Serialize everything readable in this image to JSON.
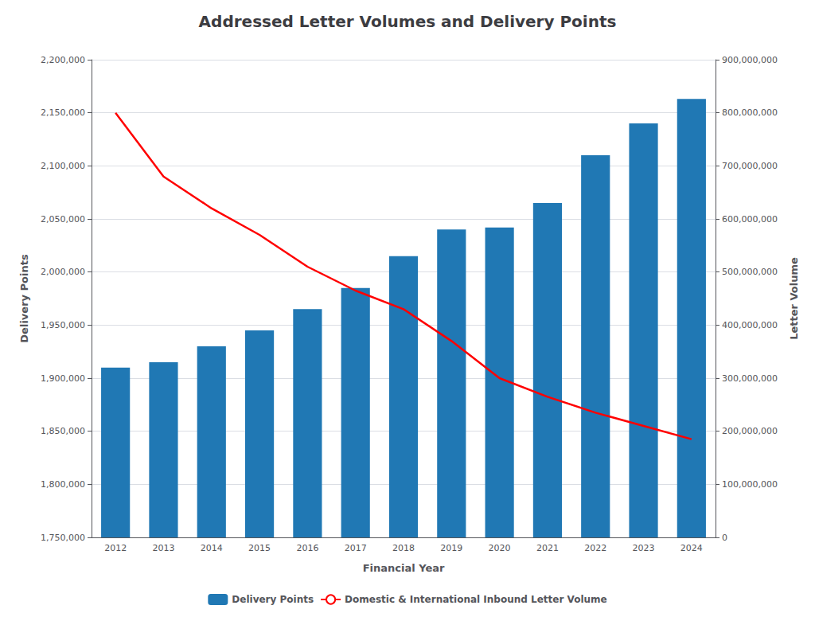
{
  "chart_data": {
    "type": "bar",
    "title": "Addressed Letter Volumes and Delivery Points",
    "xlabel": "Financial Year",
    "ylabel": "Delivery Points",
    "y2label": "Letter Volume",
    "categories": [
      "2012",
      "2013",
      "2014",
      "2015",
      "2016",
      "2017",
      "2018",
      "2019",
      "2020",
      "2021",
      "2022",
      "2023",
      "2024"
    ],
    "series": [
      {
        "name": "Delivery Points",
        "type": "bar",
        "color": "#2078B4",
        "values": [
          1910000,
          1915000,
          1930000,
          1945000,
          1965000,
          1985000,
          2015000,
          2040000,
          2042000,
          2065000,
          2110000,
          2140000,
          2163000
        ]
      },
      {
        "name": "Domestic & International Inbound Letter Volume",
        "type": "line",
        "color": "#FF0000",
        "axis": "y2",
        "values": [
          800000000,
          680000000,
          620000000,
          570000000,
          510000000,
          465000000,
          430000000,
          370000000,
          300000000,
          265000000,
          235000000,
          210000000,
          185000000
        ]
      }
    ],
    "ylim": [
      1750000,
      2200000
    ],
    "yticks": [
      {
        "value": 1750000,
        "label": "1,750,000"
      },
      {
        "value": 1800000,
        "label": "1,800,000"
      },
      {
        "value": 1850000,
        "label": "1,850,000"
      },
      {
        "value": 1900000,
        "label": "1,900,000"
      },
      {
        "value": 1950000,
        "label": "1,950,000"
      },
      {
        "value": 2000000,
        "label": "2,000,000"
      },
      {
        "value": 2050000,
        "label": "2,050,000"
      },
      {
        "value": 2100000,
        "label": "2,100,000"
      },
      {
        "value": 2150000,
        "label": "2,150,000"
      },
      {
        "value": 2200000,
        "label": "2,200,000"
      }
    ],
    "y2lim": [
      0,
      900000000
    ],
    "y2ticks": [
      0,
      {
        "value": 100000000,
        "label": "100,000,000"
      },
      {
        "value": 200000000,
        "label": "200,000,000"
      },
      {
        "value": 300000000,
        "label": "300,000,000"
      },
      {
        "value": 400000000,
        "label": "400,000,000"
      },
      {
        "value": 500000000,
        "label": "500,000,000"
      },
      {
        "value": 600000000,
        "label": "600,000,000"
      },
      {
        "value": 700000000,
        "label": "700,000,000"
      },
      {
        "value": 800000000,
        "label": "800,000,000"
      },
      {
        "value": 900000000,
        "label": "900,000,000"
      }
    ],
    "grid": true,
    "legend": "bottom"
  }
}
